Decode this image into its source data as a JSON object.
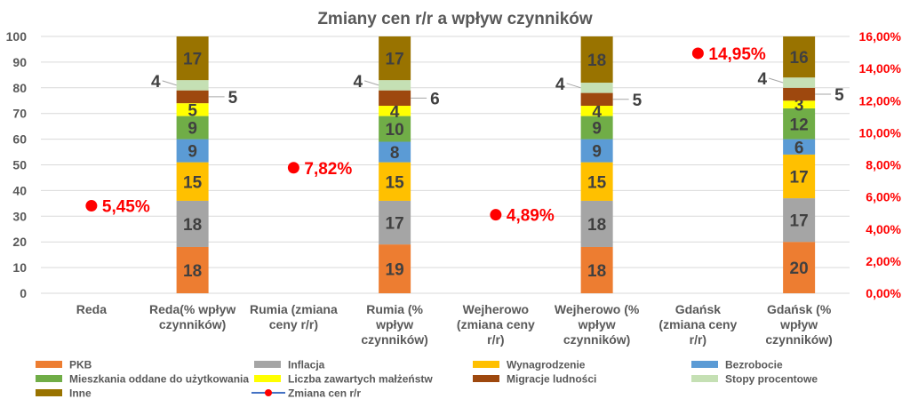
{
  "chart_data": {
    "type": "bar",
    "stacked": true,
    "title": "Zmiany cen r/r a wpływ czynników",
    "categories": [
      "Reda",
      "Reda(% wpływ czynników)",
      "Rumia (zmiana ceny r/r)",
      "Rumia (% wpływ czynników)",
      "Wejherowo (zmiana ceny r/r)",
      "Wejherowo (% wpływ czynników)",
      "Gdańsk (zmiana ceny r/r)",
      "Gdańsk (% wpływ czynników)"
    ],
    "category_lines": [
      [
        "Reda"
      ],
      [
        "Reda(% wpływ",
        "czynników)"
      ],
      [
        "Rumia (zmiana",
        "ceny r/r)"
      ],
      [
        "Rumia (%",
        "wpływ",
        "czynników)"
      ],
      [
        "Wejherowo",
        "(zmiana ceny",
        "r/r)"
      ],
      [
        "Wejherowo (%",
        "wpływ",
        "czynników)"
      ],
      [
        "Gdańsk",
        "(zmiana ceny",
        "r/r)"
      ],
      [
        "Gdańsk (%",
        "wpływ",
        "czynników)"
      ]
    ],
    "ylim": [
      0,
      100
    ],
    "yticks": [
      "0",
      "10",
      "20",
      "30",
      "40",
      "50",
      "60",
      "70",
      "80",
      "90",
      "100"
    ],
    "y2lim": [
      0,
      16
    ],
    "y2ticks": [
      "0,00%",
      "2,00%",
      "4,00%",
      "6,00%",
      "8,00%",
      "10,00%",
      "12,00%",
      "14,00%",
      "16,00%"
    ],
    "grid": true,
    "legend_position": "bottom",
    "series": [
      {
        "name": "PKB",
        "color": "#ED7D31",
        "values": [
          null,
          18,
          null,
          19,
          null,
          18,
          null,
          20
        ]
      },
      {
        "name": "Inflacja",
        "color": "#A5A5A5",
        "values": [
          null,
          18,
          null,
          17,
          null,
          18,
          null,
          17
        ]
      },
      {
        "name": "Wynagrodzenie",
        "color": "#FFC000",
        "values": [
          null,
          15,
          null,
          15,
          null,
          15,
          null,
          17
        ]
      },
      {
        "name": "Bezrobocie",
        "color": "#5B9BD5",
        "values": [
          null,
          9,
          null,
          8,
          null,
          9,
          null,
          6
        ]
      },
      {
        "name": "Mieszkania oddane do użytkowania",
        "color": "#70AD47",
        "values": [
          null,
          9,
          null,
          10,
          null,
          9,
          null,
          12
        ]
      },
      {
        "name": "Liczba zawartych małżeństw",
        "color": "#FFFF00",
        "values": [
          null,
          5,
          null,
          4,
          null,
          4,
          null,
          3
        ]
      },
      {
        "name": "Migracje ludności",
        "color": "#9E480E",
        "values": [
          null,
          5,
          null,
          6,
          null,
          5,
          null,
          5
        ]
      },
      {
        "name": "Stopy procentowe",
        "color": "#C5E0B4",
        "values": [
          null,
          4,
          null,
          4,
          null,
          4,
          null,
          4
        ]
      },
      {
        "name": "Inne",
        "color": "#997300",
        "values": [
          null,
          17,
          null,
          17,
          null,
          18,
          null,
          16
        ]
      }
    ],
    "line_series": {
      "name": "Zmiana cen r/r",
      "color": "#FF0000",
      "axis": "right",
      "values": [
        5.45,
        null,
        7.82,
        null,
        4.89,
        null,
        14.95,
        null
      ],
      "labels": [
        "5,45%",
        null,
        "7,82%",
        null,
        "4,89%",
        null,
        "14,95%",
        null
      ]
    }
  }
}
